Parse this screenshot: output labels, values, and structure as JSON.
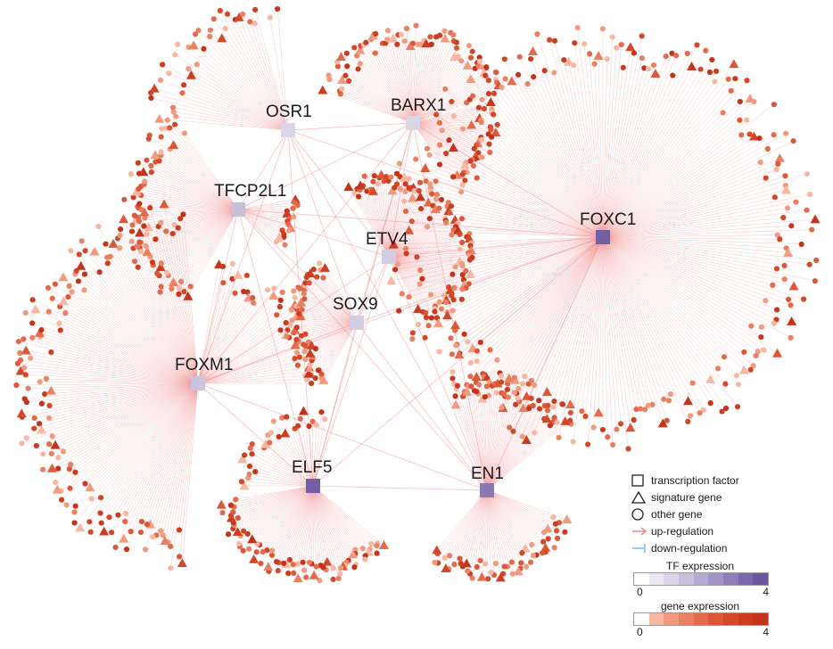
{
  "network": {
    "transcription_factors": [
      {
        "name": "OSR1",
        "expression_level": 1
      },
      {
        "name": "BARX1",
        "expression_level": 1
      },
      {
        "name": "TFCP2L1",
        "expression_level": 1.5
      },
      {
        "name": "ETV4",
        "expression_level": 1.2
      },
      {
        "name": "FOXC1",
        "expression_level": 3.8
      },
      {
        "name": "SOX9",
        "expression_level": 1.2
      },
      {
        "name": "FOXM1",
        "expression_level": 1.4
      },
      {
        "name": "ELF5",
        "expression_level": 3.8
      },
      {
        "name": "EN1",
        "expression_level": 3.2
      }
    ],
    "colors": {
      "edge_up": "#f08a8a",
      "edge_down": "#87b9dc",
      "tf_low": "#ffffff",
      "tf_high": "#6b57a0",
      "gene_low": "#ffffff",
      "gene_high": "#c8361a"
    }
  },
  "legend": {
    "items": [
      {
        "label": "transcription factor",
        "icon": "square-outline-icon"
      },
      {
        "label": "signature gene",
        "icon": "triangle-outline-icon"
      },
      {
        "label": "other gene",
        "icon": "circle-outline-icon"
      },
      {
        "label": "up-regulation",
        "icon": "arrow-icon"
      },
      {
        "label": "down-regulation",
        "icon": "t-bar-icon"
      }
    ],
    "tf_scale": {
      "title": "TF expression",
      "min": "0",
      "max": "4",
      "colors": [
        "#ffffff",
        "#ece8f3",
        "#dcd4ea",
        "#c9bfdf",
        "#b6a9d3",
        "#a393c6",
        "#8f7cb9",
        "#7b67ad",
        "#6b57a0"
      ]
    },
    "gene_scale": {
      "title": "gene expression",
      "min": "0",
      "max": "4",
      "colors": [
        "#ffffff",
        "#f6b8a3",
        "#f09b80",
        "#ea8062",
        "#e36a4a",
        "#dc5738",
        "#d4482a",
        "#cc3c21",
        "#c4331b"
      ]
    }
  }
}
